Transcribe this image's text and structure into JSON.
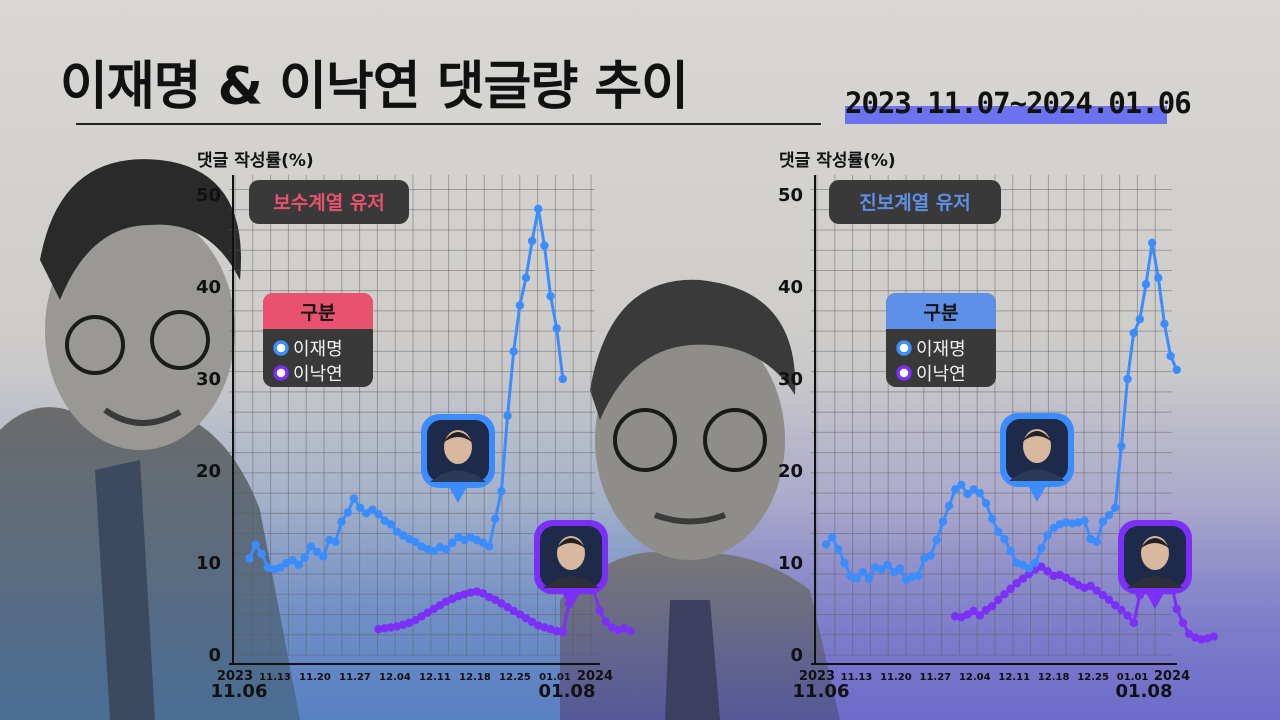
{
  "title": "이재명 & 이낙연 댓글량 추이",
  "date_range": "2023.11.07~2024.01.06",
  "colors": {
    "lee_jm": "#3a8cff",
    "lee_ny": "#7b2ff7",
    "badge_left": "#e9526e",
    "badge_right": "#5e8fe6"
  },
  "chart_data": [
    {
      "type": "line",
      "panel_label": "보수계열 유저",
      "ylabel": "댓글 작성률(%)",
      "ylim": [
        0,
        50
      ],
      "yticks": [
        "0",
        "10",
        "20",
        "30",
        "40",
        "50"
      ],
      "xtick_labels": [
        "2023",
        "11.13",
        "11.20",
        "11.27",
        "12.04",
        "12.11",
        "12.18",
        "12.25",
        "01.01",
        "2024"
      ],
      "x_start_label": "11.06",
      "x_end_label": "01.08",
      "legend": {
        "title": "구분",
        "items": [
          "이재명",
          "이낙연"
        ]
      },
      "grid": true,
      "series": [
        {
          "name": "이재명",
          "x_start": "11.07",
          "values": [
            10.5,
            12,
            11,
            9.5,
            9.3,
            9.5,
            10,
            10.3,
            9.8,
            10.6,
            11.8,
            11.2,
            10.7,
            12.5,
            12.3,
            14.5,
            15.5,
            17,
            16,
            15.4,
            15.8,
            15.3,
            14.6,
            14.2,
            13.4,
            13,
            12.6,
            12.3,
            11.8,
            11.5,
            11.3,
            11.7,
            11.5,
            12.2,
            12.8,
            12.5,
            12.8,
            12.5,
            12.2,
            11.8,
            14.8,
            17.8,
            26,
            33,
            38,
            41,
            45,
            48.5,
            44.5,
            39,
            35.5,
            30
          ]
        },
        {
          "name": "이낙연",
          "x_start": "11.28",
          "values": [
            2.8,
            2.9,
            3,
            3.1,
            3.3,
            3.5,
            3.8,
            4.2,
            4.6,
            5,
            5.4,
            5.8,
            6.1,
            6.4,
            6.6,
            6.8,
            6.9,
            6.7,
            6.3,
            6,
            5.6,
            5.2,
            4.8,
            4.4,
            4,
            3.6,
            3.2,
            3,
            2.8,
            2.6,
            2.5,
            5.6,
            6.7,
            7.2,
            7.5,
            7.1,
            4.8,
            3.6,
            3,
            2.7,
            2.9,
            2.6
          ]
        }
      ]
    },
    {
      "type": "line",
      "panel_label": "진보계열 유저",
      "ylabel": "댓글 작성률(%)",
      "ylim": [
        0,
        50
      ],
      "yticks": [
        "0",
        "10",
        "20",
        "30",
        "40",
        "50"
      ],
      "xtick_labels": [
        "2023",
        "11.13",
        "11.20",
        "11.27",
        "12.04",
        "12.11",
        "12.18",
        "12.25",
        "01.01",
        "2024"
      ],
      "x_start_label": "11.06",
      "x_end_label": "01.08",
      "legend": {
        "title": "구분",
        "items": [
          "이재명",
          "이낙연"
        ]
      },
      "grid": true,
      "series": [
        {
          "name": "이재명",
          "x_start": "11.07",
          "values": [
            12,
            12.8,
            11.5,
            10,
            8.6,
            8.3,
            9,
            8.3,
            9.5,
            9.3,
            9.8,
            9,
            9.4,
            8.2,
            8.5,
            8.6,
            10.5,
            10.8,
            12.5,
            14.5,
            16.2,
            18,
            18.5,
            17.5,
            18,
            17.6,
            16.5,
            14.8,
            13.4,
            12.6,
            11.3,
            10,
            9.8,
            9.4,
            10,
            11.6,
            13,
            13.8,
            14.2,
            14.4,
            14.3,
            14.4,
            14.6,
            12.6,
            12.3,
            14.5,
            15.2,
            16,
            22.7,
            30,
            35,
            36.5,
            40.3,
            44.8,
            41,
            36,
            32.5,
            31
          ]
        },
        {
          "name": "이낙연",
          "x_start": "11.28",
          "values": [
            4.2,
            4.1,
            4.4,
            4.8,
            4.3,
            4.9,
            5.3,
            6,
            6.6,
            7.2,
            7.8,
            8.3,
            8.8,
            9.3,
            9.6,
            9.1,
            8.6,
            8.7,
            8.4,
            8,
            7.6,
            7.3,
            7.5,
            7,
            6.5,
            6,
            5.4,
            4.9,
            4.3,
            3.5,
            6.5,
            8,
            8.7,
            8.8,
            8.7,
            8.3,
            5,
            3.5,
            2.3,
            1.9,
            1.7,
            1.8,
            2
          ]
        }
      ]
    }
  ]
}
